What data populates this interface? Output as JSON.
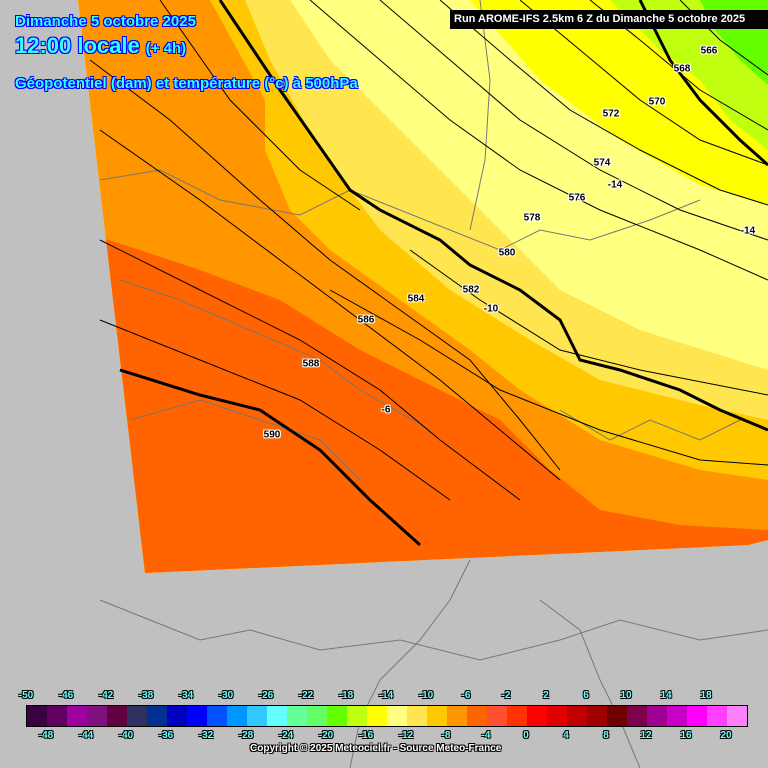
{
  "header": {
    "date": "Dimanche 5 octobre 2025",
    "time": "12:00 locale",
    "offset": "(+ 4h)",
    "parameter": "Géopotentiel (dam) et température (°c) à 500hPa",
    "run": "Run AROME-IFS 2.5km 6 Z du Dimanche 5 octobre 2025"
  },
  "contour_labels": [
    "566",
    "568",
    "570",
    "572",
    "574",
    "576",
    "578",
    "580",
    "582",
    "584",
    "586",
    "588",
    "590"
  ],
  "temperature_labels": [
    "-14",
    "-14",
    "-10",
    "-6"
  ],
  "legend": {
    "colors": [
      "#3a0040",
      "#600060",
      "#a000a0",
      "#801080",
      "#600040",
      "#303060",
      "#003090",
      "#0000c0",
      "#0000ff",
      "#0050ff",
      "#0096ff",
      "#30c8ff",
      "#64ffff",
      "#64ff96",
      "#64ff64",
      "#64ff00",
      "#c0ff10",
      "#ffff00",
      "#ffff80",
      "#ffe650",
      "#ffc800",
      "#ff9600",
      "#ff6400",
      "#ff5032",
      "#ff3200",
      "#ff0000",
      "#e00000",
      "#c00000",
      "#a00000",
      "#700000",
      "#800050",
      "#a00090",
      "#c800c8",
      "#ff00ff",
      "#ff40ff",
      "#ff80ff"
    ],
    "top_ticks": [
      "-50",
      "-46",
      "-42",
      "-38",
      "-34",
      "-30",
      "-26",
      "-22",
      "-18",
      "-14",
      "-10",
      "-6",
      "-2",
      "2",
      "6",
      "10",
      "14",
      "18"
    ],
    "bottom_ticks": [
      "-48",
      "-44",
      "-40",
      "-36",
      "-32",
      "-28",
      "-24",
      "-20",
      "-16",
      "-12",
      "-8",
      "-4",
      "0",
      "4",
      "8",
      "12",
      "16",
      "20"
    ]
  },
  "copyright": "Copyright © 2025 Meteociel.fr - Source Meteo-France"
}
